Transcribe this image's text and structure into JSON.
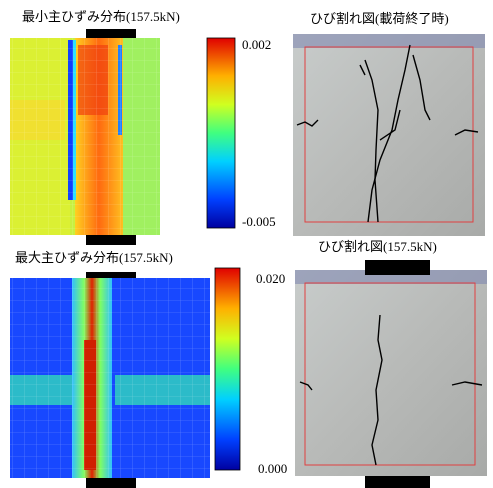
{
  "panels": [
    {
      "title": "最小主ひずみ分布(157.5kN)",
      "colorbar": {
        "max_label": "0.002",
        "min_label": "-0.005"
      }
    },
    {
      "title": "ひび割れ図(載荷終了時)"
    },
    {
      "title": "最大主ひずみ分布(157.5kN)",
      "colorbar": {
        "max_label": "0.020",
        "min_label": "0.000"
      }
    },
    {
      "title": "ひび割れ図(157.5kN)"
    }
  ]
}
